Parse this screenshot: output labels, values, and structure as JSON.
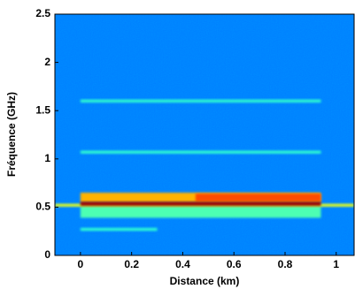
{
  "chart_data": {
    "type": "heatmap",
    "xlabel": "Distance (km)",
    "ylabel": "Fréquence (GHz)",
    "xlim": [
      -0.1,
      1.07
    ],
    "ylim": [
      0,
      2.5
    ],
    "xticks": [
      0,
      0.2,
      0.4,
      0.6,
      0.8,
      1
    ],
    "yticks": [
      0,
      0.5,
      1,
      1.5,
      2,
      2.5
    ],
    "colormap": "jet",
    "background_level": 0.25,
    "bands": [
      {
        "y": 0.27,
        "thickness": 0.03,
        "x": [
          0,
          0.3
        ],
        "level": 0.42
      },
      {
        "y": 1.07,
        "thickness": 0.03,
        "x": [
          0,
          0.94
        ],
        "level": 0.42
      },
      {
        "y": 1.6,
        "thickness": 0.03,
        "x": [
          0,
          0.94
        ],
        "level": 0.42
      },
      {
        "y": 0.45,
        "thickness": 0.12,
        "x": [
          0,
          0.94
        ],
        "level": 0.45
      },
      {
        "y": 0.52,
        "thickness": 0.03,
        "x": [
          -0.1,
          1.07
        ],
        "level": 0.6
      },
      {
        "y": 0.6,
        "thickness": 0.1,
        "x": [
          0,
          0.94
        ],
        "level": 0.7
      },
      {
        "y": 0.6,
        "thickness": 0.08,
        "x": [
          0.45,
          0.94
        ],
        "level": 0.8
      },
      {
        "y": 0.535,
        "thickness": 0.04,
        "x": [
          0,
          0.94
        ],
        "level": 0.97
      }
    ]
  }
}
